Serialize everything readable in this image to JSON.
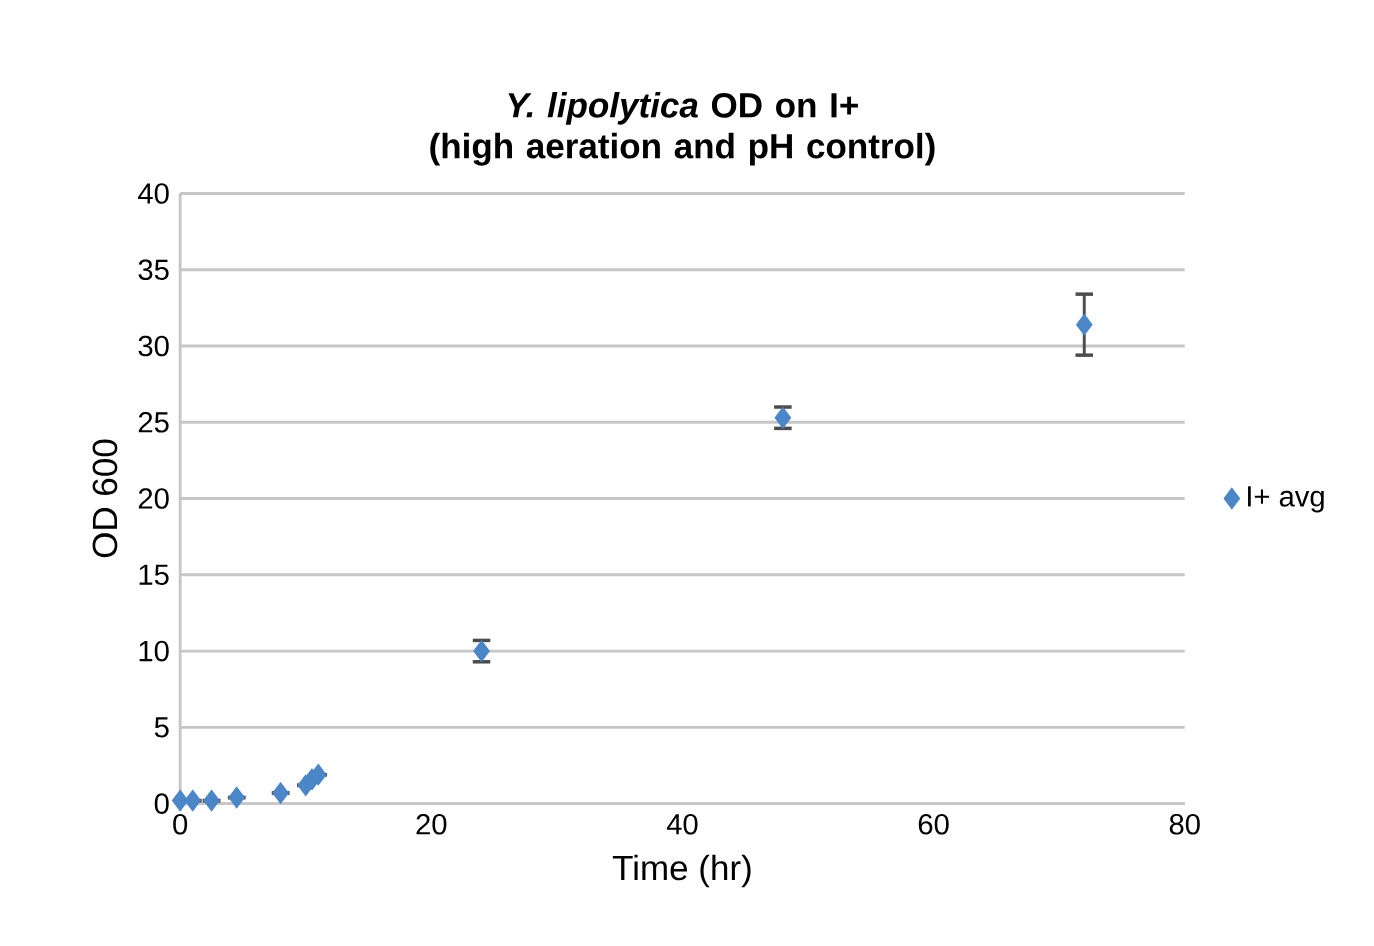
{
  "chart_data": {
    "type": "scatter",
    "title": "*Y. lipolytica* OD on I+\n(high aeration and pH control)",
    "xlabel": "Time (hr)",
    "ylabel": "OD 600",
    "x": [
      0,
      1,
      2.5,
      4.5,
      8,
      10,
      10.5,
      11,
      24,
      48,
      72
    ],
    "series": [
      {
        "name": "I+ avg",
        "color": "#4a86c8",
        "values": [
          0.2,
          0.2,
          0.2,
          0.4,
          0.7,
          1.2,
          1.6,
          1.9,
          10,
          25.3,
          31.4
        ],
        "errors": [
          null,
          null,
          null,
          null,
          null,
          null,
          null,
          null,
          0.7,
          0.7,
          2
        ]
      }
    ],
    "xlim": [
      0,
      80
    ],
    "ylim": [
      0,
      40
    ],
    "xticks": [
      0,
      20,
      40,
      60,
      80
    ],
    "yticks": [
      0,
      5,
      10,
      15,
      20,
      25,
      30,
      35,
      40
    ],
    "grid": "y",
    "legend": "right",
    "marker": "diamond"
  }
}
